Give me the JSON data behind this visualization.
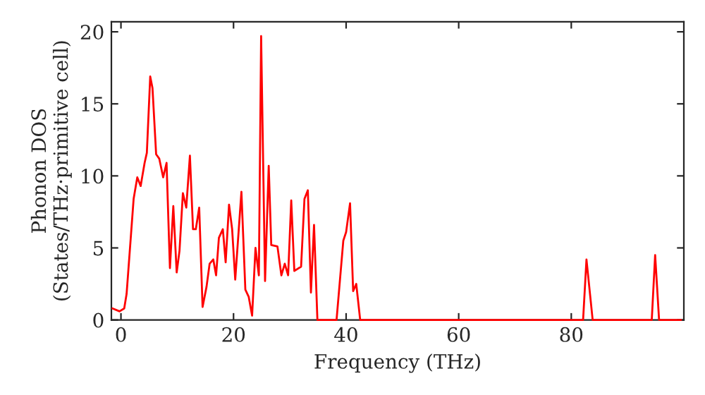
{
  "chart_data": {
    "type": "line",
    "xlabel": "Frequency (THz)",
    "ylabel": "Phonon DOS\n(States/THz·primitive cell)",
    "x": [
      -1.5,
      -0.25,
      0.58,
      1.0,
      2.25,
      2.9,
      3.5,
      4.2,
      4.6,
      5.2,
      5.6,
      6.25,
      6.8,
      7.5,
      8.1,
      8.7,
      9.3,
      9.9,
      10.4,
      11.0,
      11.6,
      12.25,
      12.8,
      13.3,
      13.9,
      14.5,
      15.2,
      15.75,
      16.4,
      16.9,
      17.4,
      18.1,
      18.6,
      19.2,
      19.75,
      20.3,
      21.4,
      22.1,
      22.7,
      23.3,
      23.9,
      24.5,
      24.9,
      25.6,
      26.25,
      26.7,
      27.8,
      28.5,
      29.1,
      29.7,
      30.25,
      30.8,
      32.0,
      32.6,
      33.2,
      33.75,
      34.3,
      34.9,
      38.3,
      39.5,
      40.0,
      40.7,
      41.25,
      41.8,
      42.5,
      82.1,
      82.7,
      83.8,
      94.3,
      94.9,
      95.6,
      99.5
    ],
    "series": [
      {
        "color": "#ff0000",
        "values": [
          0.8,
          0.6,
          0.8,
          1.8,
          8.4,
          9.9,
          9.3,
          10.9,
          11.6,
          16.9,
          16.1,
          11.5,
          11.2,
          9.9,
          10.9,
          3.6,
          7.9,
          3.3,
          4.8,
          8.8,
          7.8,
          11.4,
          6.3,
          6.3,
          7.8,
          0.9,
          2.3,
          3.9,
          4.2,
          3.1,
          5.7,
          6.3,
          4.0,
          8.0,
          6.3,
          2.8,
          8.9,
          2.1,
          1.6,
          0.3,
          5.0,
          3.1,
          19.7,
          2.7,
          10.7,
          5.2,
          5.1,
          3.1,
          3.9,
          3.1,
          8.3,
          3.4,
          3.7,
          8.4,
          9.0,
          1.9,
          6.6,
          0,
          0,
          5.5,
          6.1,
          8.1,
          2.0,
          2.5,
          0,
          0,
          4.2,
          0,
          0,
          4.5,
          0,
          0
        ]
      }
    ],
    "xlim": [
      -1.7,
      100
    ],
    "ylim": [
      0,
      20.7
    ],
    "xticks": [
      0,
      20,
      40,
      60,
      80
    ],
    "yticks": [
      0,
      5,
      10,
      15,
      20
    ],
    "grid": false,
    "legend": false
  }
}
